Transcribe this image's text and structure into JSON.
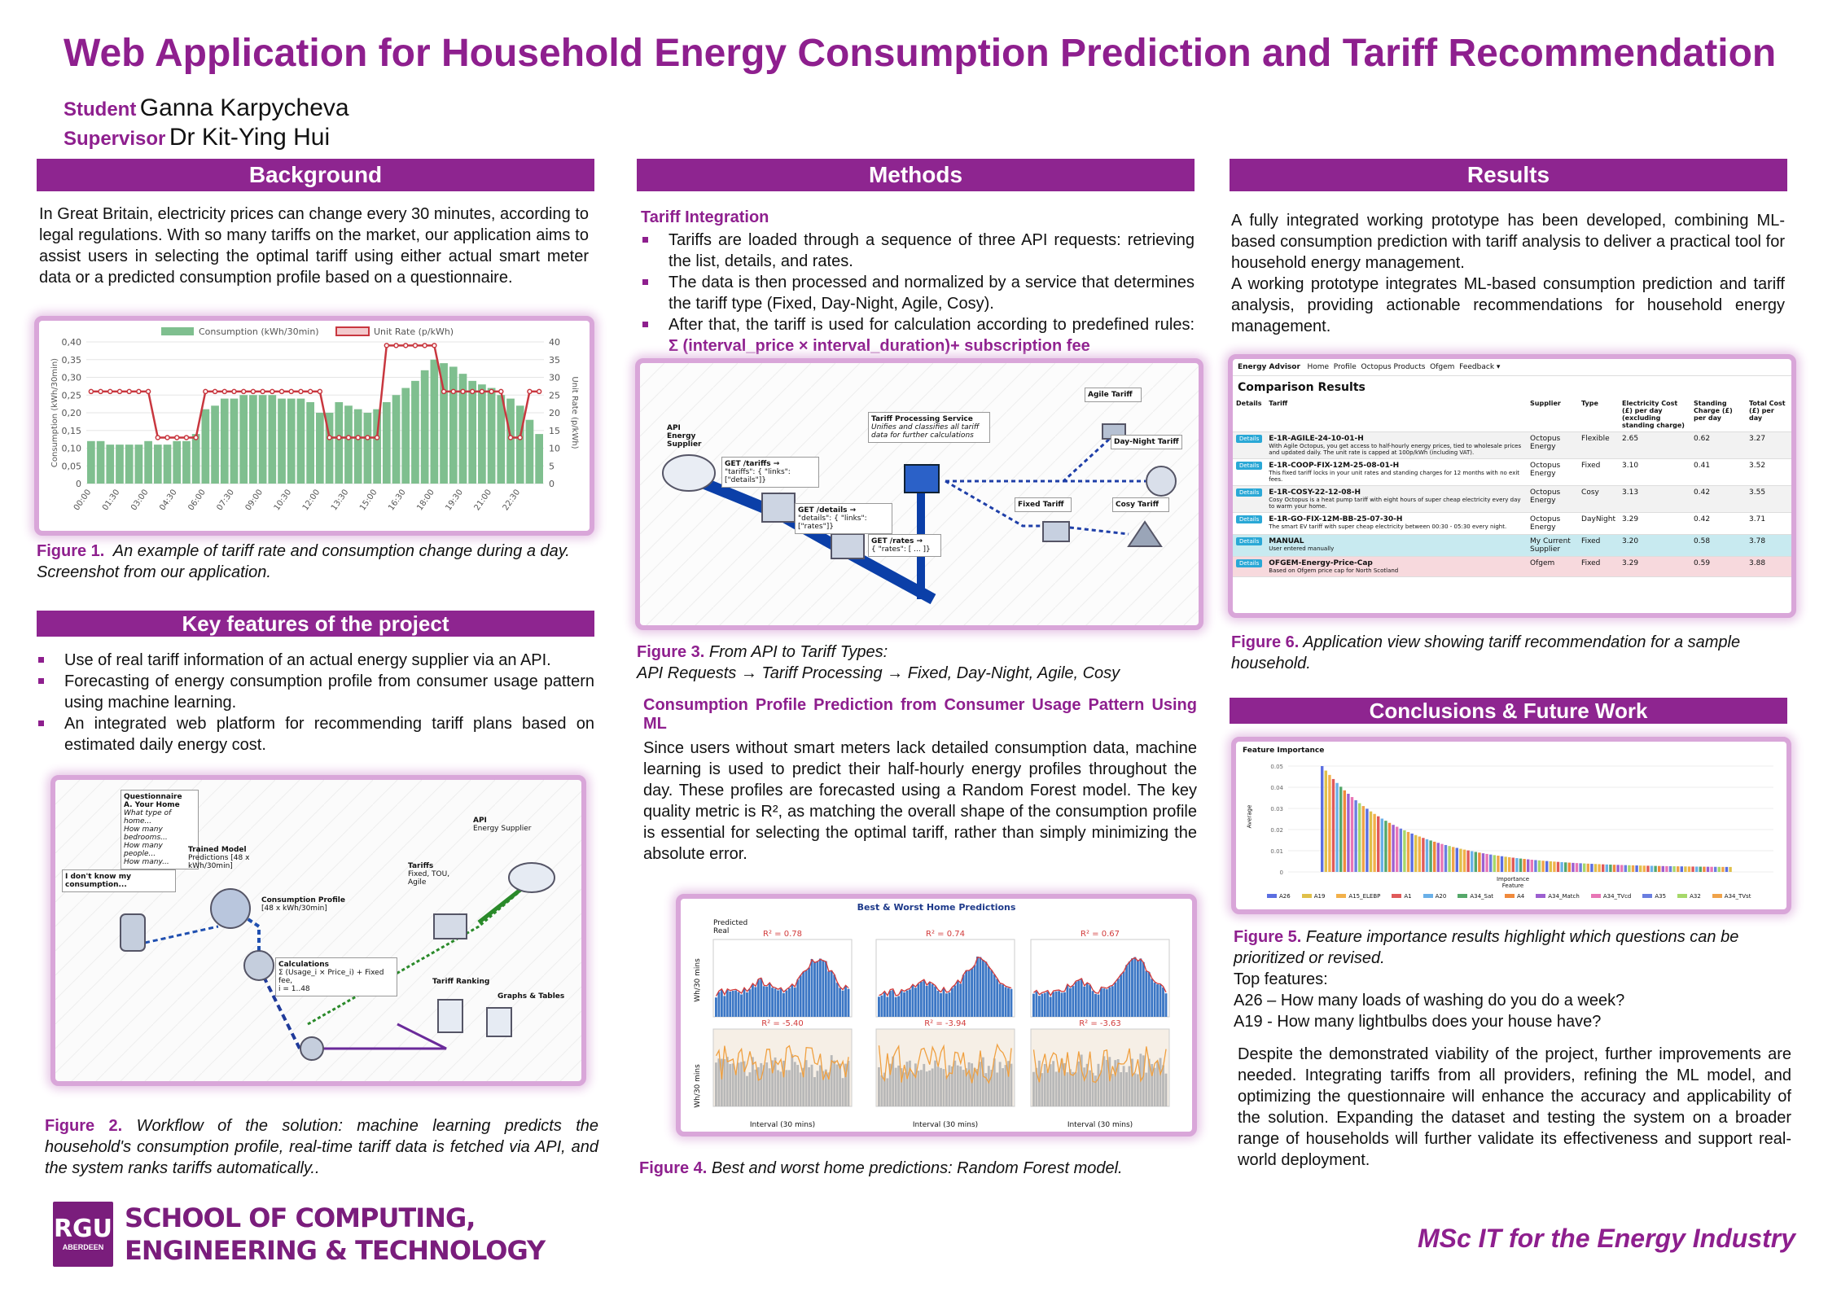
{
  "title": "Web Application for Household Energy Consumption Prediction and Tariff Recommendation",
  "student": {
    "label": "Student",
    "name": "Ganna Karpycheva"
  },
  "supervisor": {
    "label": "Supervisor",
    "name": "Dr Kit-Ying Hui"
  },
  "background": {
    "heading": "Background",
    "text": "In Great Britain, electricity prices can change every 30 minutes, according to legal regulations. With so many tariffs on the market, our application aims to assist users in selecting the optimal tariff using either actual smart meter data or a predicted consumption profile based on a questionnaire.",
    "fig_label": "Figure 1.",
    "fig_caption": "An example of tariff rate and consumption change during a day. Screenshot from our application."
  },
  "fig1_chart": {
    "legend": [
      "Consumption (kWh/30min)",
      "Unit Rate (p/kWh)"
    ],
    "ylabel_left": "Consumption (kWh/30min)",
    "ylabel_right": "Unit Rate (p/kWh)",
    "left_ticks": [
      "0,40",
      "0,35",
      "0,30",
      "0,25",
      "0,20",
      "0,15",
      "0,10",
      "0,05",
      "0"
    ],
    "right_ticks": [
      "40",
      "35",
      "30",
      "25",
      "20",
      "15",
      "10",
      "5",
      "0"
    ],
    "x_ticks": [
      "00:00",
      "01:30",
      "03:00",
      "04:30",
      "06:00",
      "07:30",
      "09:00",
      "10:30",
      "12:00",
      "13:30",
      "15:00",
      "16:30",
      "18:00",
      "19:30",
      "21:00",
      "22:30"
    ],
    "colors": {
      "bar": "#7fbf8f",
      "line": "#c8373f"
    }
  },
  "chart_data": {
    "type": "bar",
    "x": [
      "00:00",
      "00:30",
      "01:00",
      "01:30",
      "02:00",
      "02:30",
      "03:00",
      "03:30",
      "04:00",
      "04:30",
      "05:00",
      "05:30",
      "06:00",
      "06:30",
      "07:00",
      "07:30",
      "08:00",
      "08:30",
      "09:00",
      "09:30",
      "10:00",
      "10:30",
      "11:00",
      "11:30",
      "12:00",
      "12:30",
      "13:00",
      "13:30",
      "14:00",
      "14:30",
      "15:00",
      "15:30",
      "16:00",
      "16:30",
      "17:00",
      "17:30",
      "18:00",
      "18:30",
      "19:00",
      "19:30",
      "20:00",
      "20:30",
      "21:00",
      "21:30",
      "22:00",
      "22:30",
      "23:00",
      "23:30"
    ],
    "series": [
      {
        "name": "Consumption (kWh/30min)",
        "axis": "left",
        "values": [
          0.12,
          0.12,
          0.11,
          0.11,
          0.11,
          0.11,
          0.12,
          0.11,
          0.11,
          0.12,
          0.12,
          0.14,
          0.21,
          0.22,
          0.24,
          0.24,
          0.25,
          0.25,
          0.25,
          0.25,
          0.24,
          0.24,
          0.24,
          0.23,
          0.2,
          0.2,
          0.23,
          0.22,
          0.21,
          0.2,
          0.21,
          0.23,
          0.25,
          0.27,
          0.29,
          0.32,
          0.35,
          0.34,
          0.33,
          0.31,
          0.29,
          0.28,
          0.27,
          0.25,
          0.24,
          0.22,
          0.18,
          0.14
        ]
      },
      {
        "name": "Unit Rate (p/kWh)",
        "axis": "right",
        "type": "line",
        "values": [
          26,
          26,
          26,
          26,
          26,
          26,
          26,
          13,
          13,
          13,
          13,
          13,
          26,
          26,
          26,
          26,
          26,
          26,
          26,
          26,
          26,
          26,
          26,
          26,
          26,
          13,
          13,
          13,
          13,
          13,
          13,
          39,
          39,
          39,
          39,
          39,
          39,
          26,
          26,
          26,
          26,
          26,
          26,
          26,
          13,
          13,
          26,
          26
        ]
      }
    ],
    "ylim_left": [
      0,
      0.4
    ],
    "ylim_right": [
      0,
      40
    ],
    "legend": "top-center",
    "grid": true
  },
  "features": {
    "heading": "Key features of the project",
    "items": [
      "Use of real tariff information of an actual energy supplier via an API.",
      "Forecasting of energy consumption profile from consumer usage pattern using machine learning.",
      "An integrated web platform for recommending tariff plans based on estimated daily energy cost."
    ]
  },
  "fig2": {
    "questionnaire_title": "Questionnaire",
    "questionnaire_sub": "A. Your Home",
    "questionnaire_lines": [
      "What type of home...",
      "How many bedrooms...",
      "How many people...",
      "How many..."
    ],
    "unknown": "I don't know my consumption...",
    "trained_title": "Trained Model",
    "trained_sub": "Predictions [48 x kWh/30min]",
    "profile_title": "Consumption Profile",
    "profile_sub": "[48 x kWh/30min]",
    "calc_title": "Calculations",
    "calc_formula": "Σ (Usage_i × Price_i) + Fixed fee,",
    "calc_range": "i = 1..48",
    "api_title": "API",
    "api_sub": "Energy Supplier",
    "tariffs_title": "Tariffs",
    "tariffs_sub": "Fixed, TOU, Agile",
    "ranking": "Tariff Ranking",
    "graphs": "Graphs & Tables",
    "fig_label": "Figure 2.",
    "fig_caption": "Workflow of the solution: machine learning predicts the household's consumption profile, real-time tariff data is fetched via API, and the system ranks tariffs automatically.."
  },
  "methods": {
    "heading": "Methods",
    "sub1": "Tariff Integration",
    "items": [
      "Tariffs are loaded through a sequence of three API requests: retrieving the list, details, and rates.",
      "The data is then processed and normalized by a service that determines the tariff type (Fixed, Day-Night, Agile, Cosy).",
      "After that, the tariff is used for calculation according to predefined rules:"
    ],
    "formula": "Σ (interval_price × interval_duration)+ subscription fee",
    "fig3": {
      "api_title": "API",
      "api_sub": "Energy Supplier",
      "service_title": "Tariff Processing Service",
      "service_sub": "Unifies and classifies all tariff data for further calculations",
      "get1": "GET /tariffs →",
      "get1_sub": "\"tariffs\": { \"links\": [\"details\"]}",
      "get2": "GET /details →",
      "get2_sub": "\"details\": { \"links\": [\"rates\"]}",
      "get3": "GET /rates →",
      "get3_sub": "{ \"rates\": [ ... ]}",
      "agile": "Agile Tariff",
      "daynight": "Day-Night Tariff",
      "fixed": "Fixed Tariff",
      "cosy": "Cosy Tariff"
    },
    "fig3_label": "Figure 3.",
    "fig3_caption": "From API to Tariff Types:",
    "fig3_caption2": "API Requests → Tariff Processing → Fixed, Day-Night, Agile, Cosy",
    "sub2": "Consumption Profile Prediction from Consumer Usage Pattern Using ML",
    "text2": "Since users without smart meters lack detailed consumption data, machine learning is used to predict their half-hourly energy profiles throughout the day. These profiles are forecasted using a Random Forest model. The key quality metric is R², as matching the overall shape of the consumption profile is essential for selecting the optimal tariff, rather than simply minimizing the absolute error.",
    "fig4_title": "Best & Worst Home Predictions",
    "fig4_r2": [
      "R² = 0.78",
      "R² = 0.74",
      "R² = 0.67",
      "R² = -5.40",
      "R² = -3.94",
      "R² = -3.63"
    ],
    "fig4_legend": [
      "Predicted",
      "Real"
    ],
    "fig4_ylabel": "Wh/30 mins",
    "fig4_xlabel": "Interval (30 mins)",
    "fig4_label": "Figure 4.",
    "fig4_caption": "Best and worst home predictions: Random Forest model."
  },
  "results": {
    "heading": "Results",
    "p1": "A fully integrated working prototype has been developed, combining ML-based consumption prediction with tariff analysis to deliver a practical tool for household energy management.",
    "p2": "A working prototype integrates ML-based consumption prediction and tariff analysis, providing actionable recommendations for household energy management.",
    "app": {
      "brand": "Energy Advisor",
      "nav": [
        "Home",
        "Profile",
        "Octopus Products",
        "Ofgem",
        "Feedback ▾"
      ],
      "heading": "Comparison Results",
      "columns": [
        "Details",
        "Tariff",
        "Supplier",
        "Type",
        "Electricity Cost (£) per day (excluding standing charge)",
        "Standing Charge (£) per day",
        "Total Cost (£) per day"
      ],
      "button": "Details",
      "rows": [
        {
          "code": "E-1R-AGILE-24-10-01-H",
          "desc": "With Agile Octopus, you get access to half-hourly energy prices, tied to wholesale prices and updated daily. The unit rate is capped at 100p/kWh (including VAT).",
          "supplier": "Octopus Energy",
          "type": "Flexible",
          "cost": "2.65",
          "standing": "0.62",
          "total": "3.27",
          "bg": "#f2f2f2"
        },
        {
          "code": "E-1R-COOP-FIX-12M-25-08-01-H",
          "desc": "This fixed tariff locks in your unit rates and standing charges for 12 months with no exit fees.",
          "supplier": "Octopus Energy",
          "type": "Fixed",
          "cost": "3.10",
          "standing": "0.41",
          "total": "3.52",
          "bg": "#ffffff"
        },
        {
          "code": "E-1R-COSY-22-12-08-H",
          "desc": "Cosy Octopus is a heat pump tariff with eight hours of super cheap electricity every day to warm your home.",
          "supplier": "Octopus Energy",
          "type": "Cosy",
          "cost": "3.13",
          "standing": "0.42",
          "total": "3.55",
          "bg": "#f2f2f2"
        },
        {
          "code": "E-1R-GO-FIX-12M-BB-25-07-30-H",
          "desc": "The smart EV tariff with super cheap electricity between 00:30 - 05:30 every night.",
          "supplier": "Octopus Energy",
          "type": "DayNight",
          "cost": "3.29",
          "standing": "0.42",
          "total": "3.71",
          "bg": "#ffffff"
        },
        {
          "code": "MANUAL",
          "desc": "User entered manually",
          "supplier": "My Current Supplier",
          "type": "Fixed",
          "cost": "3.20",
          "standing": "0.58",
          "total": "3.78",
          "bg": "#c8eaf0"
        },
        {
          "code": "OFGEM-Energy-Price-Cap",
          "desc": "Based on Ofgem price cap for North Scotland",
          "supplier": "Ofgem",
          "type": "Fixed",
          "cost": "3.29",
          "standing": "0.59",
          "total": "3.88",
          "bg": "#f7d9dd"
        }
      ]
    },
    "fig6_label": "Figure 6.",
    "fig6_caption": "Application view showing tariff recommendation for a sample household."
  },
  "conclusions": {
    "heading": "Conclusions & Future Work",
    "fig5": {
      "title": "Feature Importance",
      "ylabel": "Average",
      "xlabel": "Importance",
      "xlabel2": "Feature",
      "yticks": [
        "0.05",
        "0.04",
        "0.03",
        "0.02",
        "0.01",
        "0"
      ],
      "legend": [
        "A26",
        "A19",
        "A15_ELEBP",
        "A1",
        "A20",
        "A34_Sat",
        "A4",
        "A34_Match",
        "A34_TVcd",
        "A35",
        "A32",
        "A34_TVst"
      ],
      "legend_colors": [
        "#5b6ee1",
        "#e0c04a",
        "#f2b04a",
        "#e05a5a",
        "#6ab0e8",
        "#55a86a",
        "#f08a3c",
        "#9c5fd0",
        "#e876b6",
        "#6a7ee0",
        "#a6d86a",
        "#f0a34a"
      ]
    },
    "fig5_label": "Figure 5.",
    "fig5_caption": "Feature importance results highlight which questions can be prioritized or revised.",
    "top": "Top features:",
    "a26": "A26 – How many loads of washing do you do a week?",
    "a19": "A19 - How many lightbulbs does your house have?",
    "text": "Despite the demonstrated viability of the project, further improvements are needed. Integrating tariffs from all providers, refining the ML model, and optimizing the questionnaire will enhance the accuracy and applicability of the solution. Expanding the dataset and testing the system on a broader range of households will further validate its effectiveness and support real-world deployment."
  },
  "footer": {
    "logo_top": "RGU",
    "logo_bottom": "ABERDEEN",
    "school1": "SCHOOL OF COMPUTING,",
    "school2": "ENGINEERING & TECHNOLOGY",
    "programme": "MSc IT for the Energy Industry"
  }
}
